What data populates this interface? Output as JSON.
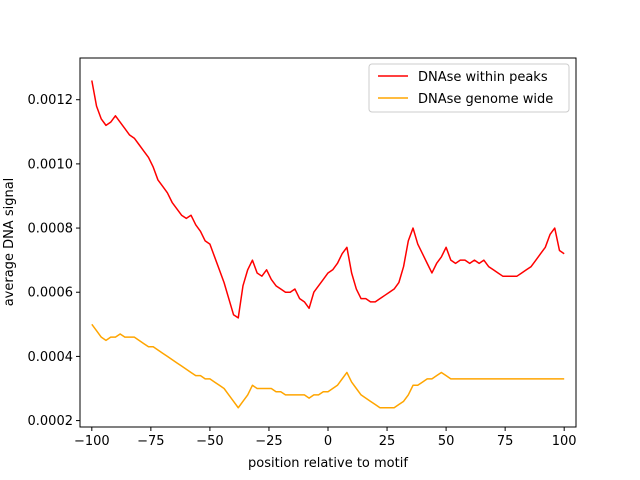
{
  "chart_data": {
    "type": "line",
    "title": "",
    "xlabel": "position relative to motif",
    "ylabel": "average DNA signal",
    "xlim": [
      -105,
      105
    ],
    "ylim": [
      0.00018,
      0.00133
    ],
    "xticks": [
      -100,
      -75,
      -50,
      -25,
      0,
      25,
      50,
      75,
      100
    ],
    "xtick_labels": [
      "−100",
      "−75",
      "−50",
      "−25",
      "0",
      "25",
      "50",
      "75",
      "100"
    ],
    "yticks": [
      0.0002,
      0.0004,
      0.0006,
      0.0008,
      0.001,
      0.0012
    ],
    "ytick_labels": [
      "0.0002",
      "0.0004",
      "0.0006",
      "0.0008",
      "0.0010",
      "0.0012"
    ],
    "grid": false,
    "legend_position": "top-right",
    "series": [
      {
        "name": "DNAse within peaks",
        "color": "#ff0000",
        "x_start": -100,
        "x_step": 2,
        "values": [
          0.00126,
          0.00118,
          0.00114,
          0.00112,
          0.00113,
          0.00115,
          0.00113,
          0.00111,
          0.00109,
          0.00108,
          0.00106,
          0.00104,
          0.00102,
          0.00099,
          0.00095,
          0.00093,
          0.00091,
          0.00088,
          0.00086,
          0.00084,
          0.00083,
          0.00084,
          0.00081,
          0.00079,
          0.00076,
          0.00075,
          0.00071,
          0.00067,
          0.00063,
          0.00058,
          0.00053,
          0.00052,
          0.00062,
          0.00067,
          0.0007,
          0.00066,
          0.00065,
          0.00067,
          0.00064,
          0.00062,
          0.00061,
          0.0006,
          0.0006,
          0.00061,
          0.00058,
          0.00057,
          0.00055,
          0.0006,
          0.00062,
          0.00064,
          0.00066,
          0.00067,
          0.00069,
          0.00072,
          0.00074,
          0.00066,
          0.00061,
          0.00058,
          0.00058,
          0.00057,
          0.00057,
          0.00058,
          0.00059,
          0.0006,
          0.00061,
          0.00063,
          0.00068,
          0.00076,
          0.0008,
          0.00075,
          0.00072,
          0.00069,
          0.00066,
          0.00069,
          0.00071,
          0.00074,
          0.0007,
          0.00069,
          0.0007,
          0.0007,
          0.00069,
          0.0007,
          0.00069,
          0.0007,
          0.00068,
          0.00067,
          0.00066,
          0.00065,
          0.00065,
          0.00065,
          0.00065,
          0.00066,
          0.00067,
          0.00068,
          0.0007,
          0.00072,
          0.00074,
          0.00078,
          0.0008,
          0.00073,
          0.00072
        ]
      },
      {
        "name": "DNAse genome wide",
        "color": "#ffa500",
        "x_start": -100,
        "x_step": 2,
        "values": [
          0.0005,
          0.00048,
          0.00046,
          0.00045,
          0.00046,
          0.00046,
          0.00047,
          0.00046,
          0.00046,
          0.00046,
          0.00045,
          0.00044,
          0.00043,
          0.00043,
          0.00042,
          0.00041,
          0.0004,
          0.00039,
          0.00038,
          0.00037,
          0.00036,
          0.00035,
          0.00034,
          0.00034,
          0.00033,
          0.00033,
          0.00032,
          0.00031,
          0.0003,
          0.00028,
          0.00026,
          0.00024,
          0.00026,
          0.00028,
          0.00031,
          0.0003,
          0.0003,
          0.0003,
          0.0003,
          0.00029,
          0.00029,
          0.00028,
          0.00028,
          0.00028,
          0.00028,
          0.00028,
          0.00027,
          0.00028,
          0.00028,
          0.00029,
          0.00029,
          0.0003,
          0.00031,
          0.00033,
          0.00035,
          0.00032,
          0.0003,
          0.00028,
          0.00027,
          0.00026,
          0.00025,
          0.00024,
          0.00024,
          0.00024,
          0.00024,
          0.00025,
          0.00026,
          0.00028,
          0.00031,
          0.00031,
          0.00032,
          0.00033,
          0.00033,
          0.00034,
          0.00035,
          0.00034,
          0.00033,
          0.00033,
          0.00033,
          0.00033,
          0.00033,
          0.00033,
          0.00033,
          0.00033,
          0.00033,
          0.00033,
          0.00033,
          0.00033,
          0.00033,
          0.00033,
          0.00033,
          0.00033,
          0.00033,
          0.00033,
          0.00033,
          0.00033,
          0.00033,
          0.00033,
          0.00033,
          0.00033,
          0.00033
        ]
      }
    ]
  }
}
